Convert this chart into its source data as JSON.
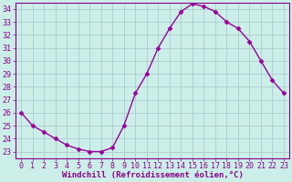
{
  "x": [
    0,
    1,
    2,
    3,
    4,
    5,
    6,
    7,
    8,
    9,
    10,
    11,
    12,
    13,
    14,
    15,
    16,
    17,
    18,
    19,
    20,
    21,
    22,
    23
  ],
  "y": [
    26,
    25,
    24.5,
    24,
    23.5,
    23.2,
    23,
    23,
    23.3,
    25,
    27.5,
    29,
    31,
    32.5,
    33.8,
    34.4,
    34.2,
    33.8,
    33,
    32.5,
    31.5,
    30,
    28.5,
    27.5
  ],
  "line_color": "#990099",
  "marker": "D",
  "marker_size": 2.5,
  "bg_color": "#cceee8",
  "grid_color": "#aacccc",
  "xlabel": "Windchill (Refroidissement éolien,°C)",
  "xlim": [
    -0.5,
    23.5
  ],
  "ylim": [
    22.5,
    34.5
  ],
  "yticks": [
    23,
    24,
    25,
    26,
    27,
    28,
    29,
    30,
    31,
    32,
    33,
    34
  ],
  "xticks": [
    0,
    1,
    2,
    3,
    4,
    5,
    6,
    7,
    8,
    9,
    10,
    11,
    12,
    13,
    14,
    15,
    16,
    17,
    18,
    19,
    20,
    21,
    22,
    23
  ],
  "xlabel_fontsize": 6.5,
  "tick_fontsize": 6,
  "line_width": 1.0,
  "tick_color": "#880088",
  "spine_color": "#880088"
}
